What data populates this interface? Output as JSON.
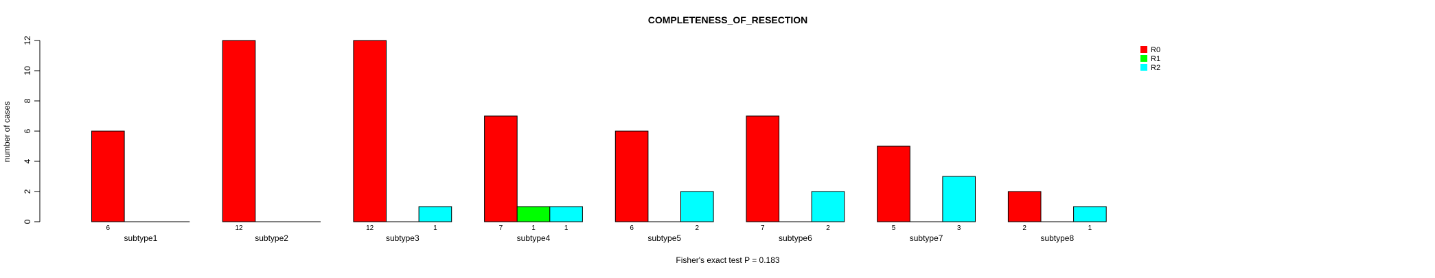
{
  "chart_data": {
    "type": "bar",
    "title": "COMPLETENESS_OF_RESECTION",
    "xlabel": "",
    "ylabel": "number of cases",
    "ylim": [
      0,
      12
    ],
    "yticks": [
      0,
      2,
      4,
      6,
      8,
      10,
      12
    ],
    "categories": [
      "subtype1",
      "subtype2",
      "subtype3",
      "subtype4",
      "subtype5",
      "subtype6",
      "subtype7",
      "subtype8"
    ],
    "series": [
      {
        "name": "R0",
        "color": "#ff0000",
        "values": [
          6,
          12,
          12,
          7,
          6,
          7,
          5,
          2
        ]
      },
      {
        "name": "R1",
        "color": "#00ff00",
        "values": [
          0,
          0,
          0,
          1,
          0,
          0,
          0,
          0
        ]
      },
      {
        "name": "R2",
        "color": "#00ffff",
        "values": [
          0,
          0,
          1,
          1,
          2,
          2,
          3,
          1
        ]
      }
    ],
    "legend_position": "top-right",
    "grid": false,
    "footnote": "Fisher's exact test P = 0.183"
  }
}
